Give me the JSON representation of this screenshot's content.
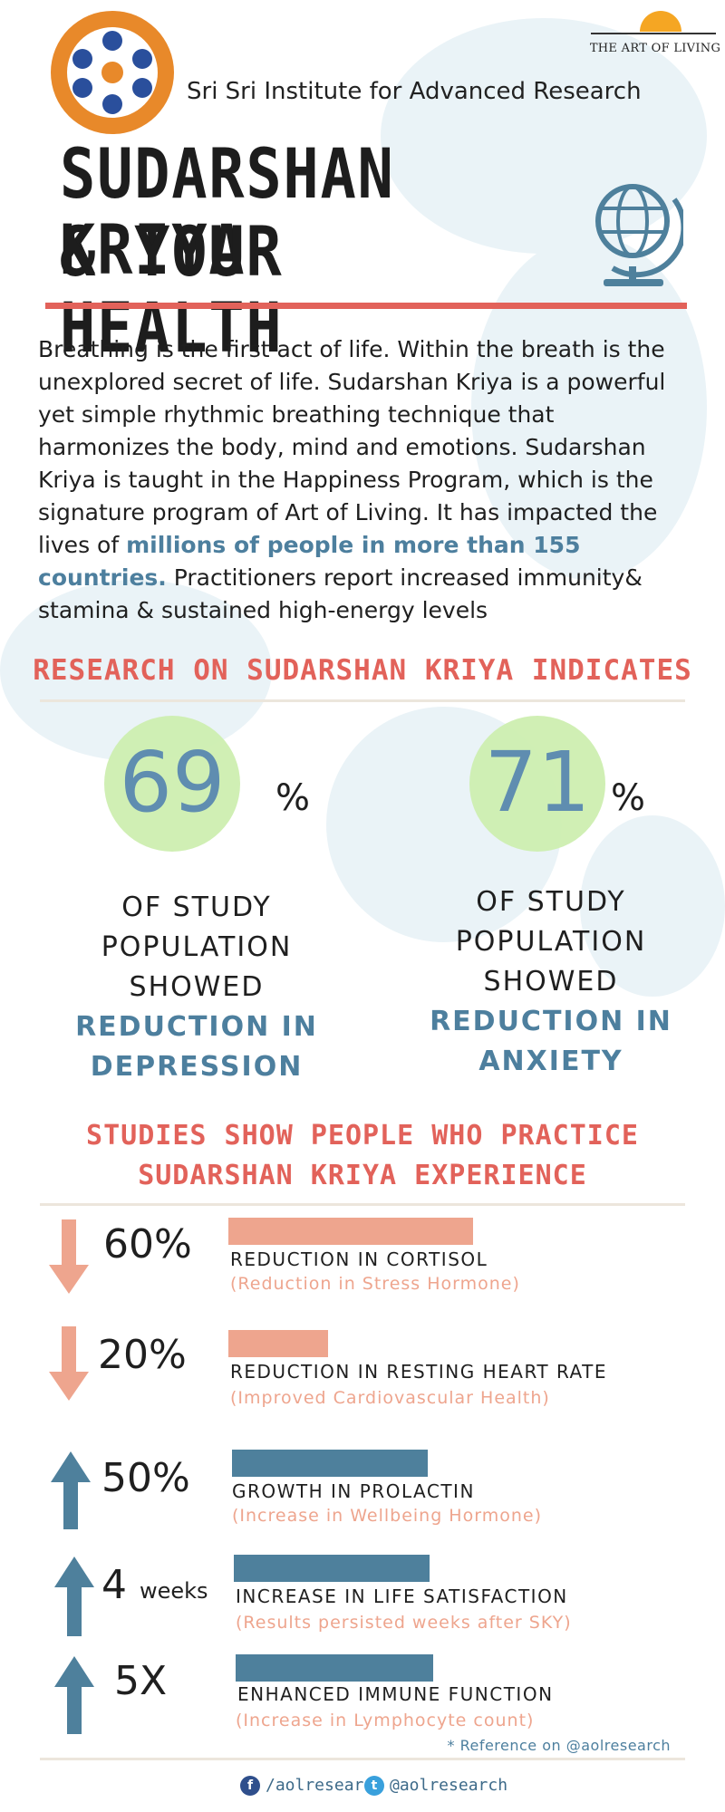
{
  "header": {
    "institute_name": "Sri Sri Institute for Advanced Research",
    "partner_logo_text": "THE ART OF LIVING"
  },
  "title": {
    "line1": "SUDARSHAN KRIYA",
    "line2": "& YOUR HEALTH"
  },
  "intro": {
    "part1": "Breathing is the first act of life. Within the breath is the unexplored secret of life. Sudarshan Kriya is a powerful yet simple rhythmic breathing technique that harmonizes the body, mind and emotions. Sudarshan Kriya is taught in the Happiness Program, which is the signature program of Art of Living. It has impacted the lives of ",
    "highlight": "millions of people in more than 155 countries.",
    "part2": " Practitioners report increased immunity& stamina & sustained high-energy levels"
  },
  "research": {
    "heading": "RESEARCH ON SUDARSHAN KRIYA INDICATES",
    "stats": [
      {
        "value": "69",
        "unit": "%",
        "desc_plain": "OF STUDY POPULATION SHOWED ",
        "desc_highlight": "REDUCTION IN DEPRESSION"
      },
      {
        "value": "71",
        "unit": "%",
        "desc_plain": "OF STUDY POPULATION SHOWED ",
        "desc_highlight": "REDUCTION IN ANXIETY"
      }
    ]
  },
  "studies": {
    "heading_line1": "STUDIES SHOW PEOPLE WHO PRACTICE",
    "heading_line2": "SUDARSHAN KRIYA EXPERIENCE",
    "items": [
      {
        "value": "60%",
        "suffix": "",
        "direction": "down",
        "label": "REDUCTION IN CORTISOL",
        "sub": "(Reduction in Stress Hormone)"
      },
      {
        "value": "20%",
        "suffix": "",
        "direction": "down",
        "label": "REDUCTION IN RESTING HEART RATE",
        "sub": "(Improved Cardiovascular Health)"
      },
      {
        "value": "50%",
        "suffix": "",
        "direction": "up",
        "label": "GROWTH IN PROLACTIN",
        "sub": "(Increase in Wellbeing Hormone)"
      },
      {
        "value": "4",
        "suffix": "weeks",
        "direction": "up",
        "label": "INCREASE IN LIFE SATISFACTION",
        "sub": "(Results persisted weeks after SKY)"
      },
      {
        "value": "5X",
        "suffix": "",
        "direction": "up",
        "label": "ENHANCED IMMUNE FUNCTION",
        "sub": "(Increase in Lymphocyte count)"
      }
    ],
    "reference": "* Reference on @aolresearch"
  },
  "footer": {
    "facebook_handle": "/aolresearch",
    "twitter_handle": "@aolresearch"
  },
  "colors": {
    "accent_red": "#e2625a",
    "accent_blue": "#4d7f9e",
    "bar_down": "#eea58e",
    "bar_up": "#4e809c",
    "circle_green": "#cdeeb0"
  },
  "icons": [
    "institute-logo-icon",
    "art-of-living-logo-icon",
    "globe-icon",
    "arrow-down-icon",
    "arrow-up-icon",
    "facebook-icon",
    "twitter-icon"
  ]
}
